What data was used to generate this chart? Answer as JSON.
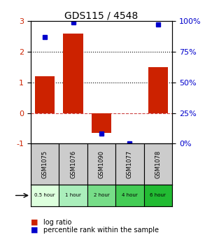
{
  "title": "GDS115 / 4548",
  "samples": [
    "GSM1075",
    "GSM1076",
    "GSM1090",
    "GSM1077",
    "GSM1078"
  ],
  "time_labels": [
    "0.5 hour",
    "1 hour",
    "2 hour",
    "4 hour",
    "6 hour"
  ],
  "time_colors": [
    "#ddffdd",
    "#aaeebb",
    "#77dd88",
    "#44cc55",
    "#22bb33"
  ],
  "log_ratios": [
    1.2,
    2.6,
    -0.65,
    0.0,
    1.5
  ],
  "percentile_ranks": [
    87,
    99,
    8,
    0,
    97
  ],
  "bar_color": "#cc2200",
  "dot_color": "#0000cc",
  "ylim_left": [
    -1,
    3
  ],
  "ylim_right": [
    0,
    100
  ],
  "yticks_left": [
    -1,
    0,
    1,
    2,
    3
  ],
  "yticks_right": [
    0,
    25,
    50,
    75,
    100
  ],
  "yticklabels_right": [
    "0%",
    "25%",
    "50%",
    "75%",
    "100%"
  ],
  "hlines": [
    {
      "y": 0,
      "color": "#cc4444",
      "linestyle": "--",
      "linewidth": 0.8
    },
    {
      "y": 1,
      "color": "black",
      "linestyle": ":",
      "linewidth": 0.8
    },
    {
      "y": 2,
      "color": "black",
      "linestyle": ":",
      "linewidth": 0.8
    }
  ],
  "legend_bar_label": "log ratio",
  "legend_dot_label": "percentile rank within the sample",
  "bar_width": 0.7,
  "figure_width": 2.93,
  "figure_height": 3.36,
  "dpi": 100
}
